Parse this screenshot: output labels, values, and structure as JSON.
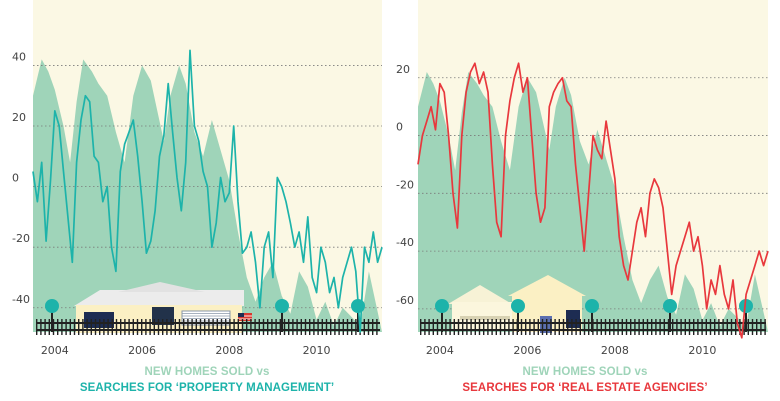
{
  "colors": {
    "panel_bg": "#fbf8e4",
    "area": "#9fd4b9",
    "left_line": "#1db3aa",
    "right_line": "#e8383d",
    "grid": "#7a7a7a",
    "tree": "#1db3aa",
    "house": "#fbf0c4",
    "fence": "#222222"
  },
  "captions": {
    "left_line1": "NEW HOMES SOLD vs",
    "left_line2": "SEARCHES FOR ‘PROPERTY MANAGEMENT’",
    "right_line1": "NEW HOMES SOLD vs",
    "right_line2": "SEARCHES FOR ‘REAL ESTATE AGENCIES’"
  },
  "chart_data": [
    {
      "type": "line",
      "title": "NEW HOMES SOLD vs SEARCHES FOR ‘PROPERTY MANAGEMENT’",
      "xlim": [
        2003.5,
        2011.5
      ],
      "ylim": [
        -48,
        55
      ],
      "yticks": [
        40,
        20,
        0,
        -20,
        -40
      ],
      "xticks": [
        2004,
        2006,
        2008,
        2010
      ],
      "grid": "horizontal dotted",
      "series": [
        {
          "name": "NEW HOMES SOLD",
          "style": "area",
          "x": [
            2003.5,
            2003.7,
            2003.85,
            2004.0,
            2004.2,
            2004.35,
            2004.5,
            2004.65,
            2004.85,
            2005.0,
            2005.2,
            2005.4,
            2005.6,
            2005.8,
            2006.0,
            2006.2,
            2006.35,
            2006.5,
            2006.65,
            2006.85,
            2007.0,
            2007.2,
            2007.4,
            2007.6,
            2007.8,
            2008.0,
            2008.2,
            2008.4,
            2008.6,
            2008.8,
            2009.0,
            2009.2,
            2009.4,
            2009.6,
            2009.8,
            2010.0,
            2010.2,
            2010.4,
            2010.6,
            2010.8,
            2011.0,
            2011.2,
            2011.5
          ],
          "values": [
            30,
            42,
            38,
            32,
            20,
            8,
            28,
            42,
            38,
            34,
            30,
            18,
            8,
            30,
            40,
            35,
            25,
            15,
            30,
            40,
            34,
            18,
            10,
            22,
            12,
            2,
            -15,
            -30,
            -38,
            -30,
            -25,
            -36,
            -42,
            -28,
            -33,
            -44,
            -38,
            -46,
            -40,
            -43,
            -46,
            -28,
            -48
          ]
        },
        {
          "name": "SEARCHES FOR ‘PROPERTY MANAGEMENT’",
          "style": "line",
          "x": [
            2003.5,
            2003.6,
            2003.7,
            2003.8,
            2003.9,
            2004.0,
            2004.1,
            2004.2,
            2004.3,
            2004.4,
            2004.5,
            2004.6,
            2004.7,
            2004.8,
            2004.9,
            2005.0,
            2005.1,
            2005.2,
            2005.3,
            2005.4,
            2005.5,
            2005.6,
            2005.7,
            2005.8,
            2005.9,
            2006.0,
            2006.1,
            2006.2,
            2006.3,
            2006.4,
            2006.5,
            2006.6,
            2006.7,
            2006.8,
            2006.9,
            2007.0,
            2007.1,
            2007.2,
            2007.3,
            2007.4,
            2007.5,
            2007.6,
            2007.7,
            2007.8,
            2007.9,
            2008.0,
            2008.1,
            2008.2,
            2008.3,
            2008.4,
            2008.5,
            2008.6,
            2008.7,
            2008.8,
            2008.9,
            2009.0,
            2009.1,
            2009.2,
            2009.3,
            2009.4,
            2009.5,
            2009.6,
            2009.7,
            2009.8,
            2009.9,
            2010.0,
            2010.1,
            2010.2,
            2010.3,
            2010.4,
            2010.5,
            2010.6,
            2010.7,
            2010.8,
            2010.9,
            2011.0,
            2011.1,
            2011.2,
            2011.3,
            2011.4,
            2011.5
          ],
          "values": [
            5,
            -5,
            8,
            -18,
            2,
            25,
            20,
            5,
            -10,
            -25,
            8,
            22,
            30,
            28,
            10,
            8,
            -5,
            0,
            -20,
            -28,
            5,
            14,
            18,
            22,
            10,
            -5,
            -22,
            -18,
            -8,
            10,
            17,
            34,
            18,
            3,
            -8,
            8,
            45,
            20,
            15,
            5,
            0,
            -20,
            -12,
            3,
            -5,
            -2,
            20,
            -5,
            -22,
            -20,
            -15,
            -25,
            -40,
            -20,
            -15,
            -30,
            3,
            0,
            -5,
            -12,
            -20,
            -15,
            -25,
            -10,
            -30,
            -35,
            -20,
            -25,
            -35,
            -30,
            -40,
            -30,
            -25,
            -20,
            -28,
            -48,
            -20,
            -25,
            -15,
            -25,
            -20
          ]
        }
      ]
    },
    {
      "type": "line",
      "title": "NEW HOMES SOLD vs SEARCHES FOR ‘REAL ESTATE AGENCIES’",
      "xlim": [
        2003.5,
        2011.5
      ],
      "ylim": [
        -68,
        40
      ],
      "yticks": [
        20,
        0,
        -20,
        -40,
        -60
      ],
      "xticks": [
        2004,
        2006,
        2008,
        2010
      ],
      "grid": "horizontal dotted",
      "series": [
        {
          "name": "NEW HOMES SOLD",
          "style": "area",
          "x": [
            2003.5,
            2003.7,
            2003.85,
            2004.0,
            2004.2,
            2004.35,
            2004.5,
            2004.65,
            2004.85,
            2005.0,
            2005.2,
            2005.4,
            2005.6,
            2005.8,
            2006.0,
            2006.2,
            2006.35,
            2006.5,
            2006.65,
            2006.85,
            2007.0,
            2007.2,
            2007.4,
            2007.6,
            2007.8,
            2008.0,
            2008.2,
            2008.4,
            2008.6,
            2008.8,
            2009.0,
            2009.2,
            2009.4,
            2009.6,
            2009.8,
            2010.0,
            2010.2,
            2010.4,
            2010.6,
            2010.8,
            2011.0,
            2011.2,
            2011.5
          ],
          "values": [
            10,
            22,
            18,
            12,
            0,
            -12,
            8,
            22,
            18,
            14,
            10,
            -2,
            -12,
            10,
            20,
            15,
            5,
            -5,
            10,
            20,
            14,
            -2,
            -10,
            2,
            -8,
            -18,
            -35,
            -50,
            -58,
            -50,
            -45,
            -56,
            -62,
            -48,
            -53,
            -64,
            -58,
            -66,
            -60,
            -63,
            -66,
            -48,
            -68
          ]
        },
        {
          "name": "SEARCHES FOR ‘REAL ESTATE AGENCIES’",
          "style": "line",
          "x": [
            2003.5,
            2003.6,
            2003.7,
            2003.8,
            2003.9,
            2004.0,
            2004.1,
            2004.2,
            2004.3,
            2004.4,
            2004.5,
            2004.6,
            2004.7,
            2004.8,
            2004.9,
            2005.0,
            2005.1,
            2005.2,
            2005.3,
            2005.4,
            2005.5,
            2005.6,
            2005.7,
            2005.8,
            2005.9,
            2006.0,
            2006.1,
            2006.2,
            2006.3,
            2006.4,
            2006.5,
            2006.6,
            2006.7,
            2006.8,
            2006.9,
            2007.0,
            2007.1,
            2007.2,
            2007.3,
            2007.4,
            2007.5,
            2007.6,
            2007.7,
            2007.8,
            2007.9,
            2008.0,
            2008.1,
            2008.2,
            2008.3,
            2008.4,
            2008.5,
            2008.6,
            2008.7,
            2008.8,
            2008.9,
            2009.0,
            2009.1,
            2009.2,
            2009.3,
            2009.4,
            2009.5,
            2009.6,
            2009.7,
            2009.8,
            2009.9,
            2010.0,
            2010.1,
            2010.2,
            2010.3,
            2010.4,
            2010.5,
            2010.6,
            2010.7,
            2010.8,
            2010.9,
            2011.0,
            2011.1,
            2011.2,
            2011.3,
            2011.4,
            2011.5
          ],
          "values": [
            -10,
            0,
            5,
            10,
            2,
            18,
            15,
            0,
            -20,
            -32,
            0,
            15,
            22,
            25,
            18,
            22,
            15,
            -10,
            -30,
            -35,
            0,
            12,
            20,
            25,
            15,
            20,
            0,
            -20,
            -30,
            -25,
            10,
            15,
            18,
            20,
            12,
            10,
            -10,
            -25,
            -40,
            -20,
            0,
            -5,
            -8,
            5,
            -5,
            -15,
            -35,
            -45,
            -50,
            -40,
            -30,
            -25,
            -35,
            -20,
            -15,
            -18,
            -25,
            -40,
            -55,
            -45,
            -40,
            -35,
            -30,
            -40,
            -35,
            -45,
            -60,
            -50,
            -55,
            -45,
            -55,
            -60,
            -50,
            -65,
            -70,
            -55,
            -50,
            -45,
            -40,
            -45,
            -40
          ]
        }
      ]
    }
  ]
}
